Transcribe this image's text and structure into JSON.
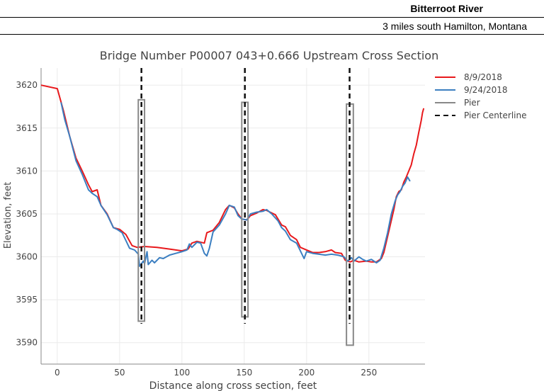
{
  "header": {
    "river": "Bitterroot River",
    "location": "3 miles south Hamilton, Montana"
  },
  "chart_data": {
    "type": "line",
    "title": "Bridge Number P00007 043+0.666 Upstream Cross Section",
    "xlabel": "Distance along cross section, feet",
    "ylabel": "Elevation, feet",
    "xlim": [
      -13,
      295
    ],
    "ylim": [
      3587.5,
      3622
    ],
    "xticks": [
      0,
      50,
      100,
      150,
      200,
      250
    ],
    "yticks": [
      3590,
      3595,
      3600,
      3605,
      3610,
      3615,
      3620
    ],
    "grid": true,
    "legend_position": "top-right",
    "series": [
      {
        "name": "8/9/2018",
        "color": "#e8191c",
        "style": "solid",
        "points": [
          [
            -13,
            3620
          ],
          [
            0,
            3619.6
          ],
          [
            5,
            3617
          ],
          [
            10,
            3614
          ],
          [
            15,
            3611.5
          ],
          [
            20,
            3610
          ],
          [
            25,
            3608.4
          ],
          [
            28,
            3607.6
          ],
          [
            32,
            3607.8
          ],
          [
            35,
            3606
          ],
          [
            40,
            3605
          ],
          [
            45,
            3603.4
          ],
          [
            50,
            3603.2
          ],
          [
            55,
            3602.6
          ],
          [
            60,
            3601.3
          ],
          [
            64,
            3601.1
          ],
          [
            70,
            3601.2
          ],
          [
            80,
            3601.1
          ],
          [
            90,
            3600.9
          ],
          [
            100,
            3600.7
          ],
          [
            105,
            3600.9
          ],
          [
            108,
            3601.6
          ],
          [
            112,
            3601.8
          ],
          [
            118,
            3601.6
          ],
          [
            120,
            3602.8
          ],
          [
            125,
            3603.1
          ],
          [
            130,
            3604
          ],
          [
            135,
            3605.5
          ],
          [
            138,
            3606
          ],
          [
            142,
            3605.7
          ],
          [
            145,
            3605
          ],
          [
            148,
            3604.4
          ],
          [
            152,
            3604.3
          ],
          [
            155,
            3604.8
          ],
          [
            160,
            3605.1
          ],
          [
            165,
            3605.5
          ],
          [
            168,
            3605.4
          ],
          [
            175,
            3604.9
          ],
          [
            180,
            3603.7
          ],
          [
            183,
            3603.5
          ],
          [
            187,
            3602.5
          ],
          [
            192,
            3602
          ],
          [
            195,
            3601.1
          ],
          [
            200,
            3600.8
          ],
          [
            205,
            3600.5
          ],
          [
            210,
            3600.5
          ],
          [
            215,
            3600.6
          ],
          [
            220,
            3600.8
          ],
          [
            223,
            3600.5
          ],
          [
            228,
            3600.4
          ],
          [
            231,
            3599.6
          ],
          [
            235,
            3599.4
          ],
          [
            238,
            3599.6
          ],
          [
            242,
            3599.4
          ],
          [
            248,
            3599.5
          ],
          [
            252,
            3599.4
          ],
          [
            256,
            3599.4
          ],
          [
            260,
            3599.8
          ],
          [
            262,
            3600.5
          ],
          [
            266,
            3603
          ],
          [
            270,
            3605.5
          ],
          [
            272,
            3607
          ],
          [
            274,
            3607.6
          ],
          [
            276,
            3607.8
          ],
          [
            278,
            3608.7
          ],
          [
            280,
            3609.3
          ],
          [
            284,
            3610.7
          ],
          [
            286,
            3612
          ],
          [
            288,
            3613
          ],
          [
            290,
            3614.5
          ],
          [
            292,
            3615.9
          ],
          [
            293,
            3616.8
          ],
          [
            294,
            3617.3
          ]
        ]
      },
      {
        "name": "9/24/2018",
        "color": "#3c7fc1",
        "style": "solid",
        "points": [
          [
            3,
            3618
          ],
          [
            6,
            3616
          ],
          [
            10,
            3614
          ],
          [
            15,
            3611.2
          ],
          [
            20,
            3609.6
          ],
          [
            25,
            3607.8
          ],
          [
            28,
            3607.4
          ],
          [
            32,
            3607
          ],
          [
            35,
            3606
          ],
          [
            40,
            3604.9
          ],
          [
            45,
            3603.4
          ],
          [
            48,
            3603.2
          ],
          [
            52,
            3602.8
          ],
          [
            55,
            3601.9
          ],
          [
            58,
            3601
          ],
          [
            62,
            3600.8
          ],
          [
            65,
            3600.3
          ],
          [
            66,
            3598.9
          ],
          [
            69,
            3599.5
          ],
          [
            70,
            3599.2
          ],
          [
            72,
            3600.6
          ],
          [
            73,
            3599.1
          ],
          [
            76,
            3599.6
          ],
          [
            78,
            3599.3
          ],
          [
            82,
            3599.9
          ],
          [
            85,
            3599.8
          ],
          [
            90,
            3600.2
          ],
          [
            95,
            3600.4
          ],
          [
            100,
            3600.6
          ],
          [
            104,
            3600.8
          ],
          [
            106,
            3601.5
          ],
          [
            108,
            3601.1
          ],
          [
            112,
            3601.7
          ],
          [
            115,
            3601.6
          ],
          [
            118,
            3600.4
          ],
          [
            120,
            3600.1
          ],
          [
            122,
            3601
          ],
          [
            125,
            3602.9
          ],
          [
            130,
            3603.7
          ],
          [
            135,
            3605
          ],
          [
            138,
            3606
          ],
          [
            142,
            3605.8
          ],
          [
            145,
            3604.8
          ],
          [
            148,
            3604.4
          ],
          [
            152,
            3604.3
          ],
          [
            155,
            3605
          ],
          [
            160,
            3605.2
          ],
          [
            165,
            3605.3
          ],
          [
            168,
            3605.5
          ],
          [
            172,
            3605
          ],
          [
            177,
            3604.2
          ],
          [
            180,
            3603.4
          ],
          [
            183,
            3603
          ],
          [
            187,
            3602
          ],
          [
            192,
            3601.6
          ],
          [
            195,
            3600.7
          ],
          [
            198,
            3599.8
          ],
          [
            200,
            3600.6
          ],
          [
            205,
            3600.4
          ],
          [
            210,
            3600.3
          ],
          [
            215,
            3600.2
          ],
          [
            220,
            3600.3
          ],
          [
            225,
            3600.2
          ],
          [
            230,
            3600
          ],
          [
            233,
            3599.5
          ],
          [
            236,
            3599.9
          ],
          [
            238,
            3599.5
          ],
          [
            242,
            3600
          ],
          [
            245,
            3599.7
          ],
          [
            248,
            3599.5
          ],
          [
            252,
            3599.7
          ],
          [
            256,
            3599.3
          ],
          [
            259,
            3599.6
          ],
          [
            262,
            3601
          ],
          [
            265,
            3602.8
          ],
          [
            268,
            3605
          ],
          [
            271,
            3606.5
          ],
          [
            273,
            3607.2
          ],
          [
            275,
            3607.6
          ],
          [
            277,
            3608.2
          ],
          [
            279,
            3608.6
          ],
          [
            281,
            3609.3
          ],
          [
            283,
            3608.8
          ]
        ]
      },
      {
        "name": "Pier",
        "color": "#888888",
        "style": "solid",
        "piers": [
          {
            "x_left": 65,
            "x_right": 70,
            "top": 3618.3,
            "bottom": 3592.5
          },
          {
            "x_left": 148,
            "x_right": 153,
            "top": 3618,
            "bottom": 3593
          },
          {
            "x_left": 232,
            "x_right": 237.5,
            "top": 3617.8,
            "bottom": 3589.7
          }
        ]
      },
      {
        "name": "Pier Centerline",
        "color": "#111111",
        "style": "dashed",
        "centerlines": [
          67.5,
          150.5,
          234.5
        ]
      }
    ]
  }
}
